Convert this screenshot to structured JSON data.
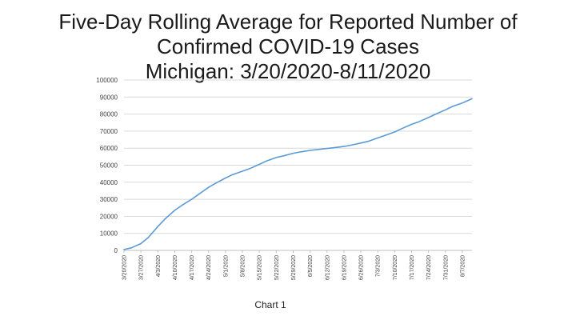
{
  "title_lines": [
    "Five-Day Rolling Average for Reported Number of",
    "Confirmed COVID-19 Cases",
    "Michigan: 3/20/2020-8/11/2020"
  ],
  "caption": "Chart 1",
  "chart_data": {
    "type": "line",
    "title": "Five-Day Rolling Average for Reported Number of Confirmed COVID-19 Cases Michigan: 3/20/2020-8/11/2020",
    "xlabel": "",
    "ylabel": "",
    "ylim": [
      0,
      100000
    ],
    "yticks": [
      0,
      10000,
      20000,
      30000,
      40000,
      50000,
      60000,
      70000,
      80000,
      90000,
      100000
    ],
    "xrange": [
      "2020-03-20",
      "2020-08-11"
    ],
    "xticks": [
      "3/20/2020",
      "3/27/2020",
      "4/3/2020",
      "4/10/2020",
      "4/17/2020",
      "4/24/2020",
      "5/1/2020",
      "5/8/2020",
      "5/15/2020",
      "5/22/2020",
      "5/29/2020",
      "6/5/2020",
      "6/12/2020",
      "6/19/2020",
      "6/26/2020",
      "7/3/2020",
      "7/10/2020",
      "7/17/2020",
      "7/24/2020",
      "7/31/2020",
      "8/7/2020"
    ],
    "grid": {
      "horizontal": true,
      "vertical": false
    },
    "legend": "none",
    "line_color": "#5b9bd5",
    "series": [
      {
        "x": [
          "3/20/2020",
          "3/23/2020",
          "3/27/2020",
          "3/30/2020",
          "4/3/2020",
          "4/6/2020",
          "4/10/2020",
          "4/13/2020",
          "4/17/2020",
          "4/20/2020",
          "4/24/2020",
          "4/27/2020",
          "5/1/2020",
          "5/4/2020",
          "5/8/2020",
          "5/11/2020",
          "5/15/2020",
          "5/18/2020",
          "5/22/2020",
          "5/25/2020",
          "5/29/2020",
          "6/1/2020",
          "6/5/2020",
          "6/8/2020",
          "6/12/2020",
          "6/15/2020",
          "6/19/2020",
          "6/22/2020",
          "6/26/2020",
          "6/29/2020",
          "7/3/2020",
          "7/6/2020",
          "7/10/2020",
          "7/13/2020",
          "7/17/2020",
          "7/20/2020",
          "7/24/2020",
          "7/27/2020",
          "7/31/2020",
          "8/3/2020",
          "8/7/2020",
          "8/11/2020"
        ],
        "values": [
          500,
          1500,
          4000,
          7500,
          14000,
          18500,
          23500,
          26500,
          30000,
          33000,
          37000,
          39500,
          42500,
          44500,
          46500,
          48000,
          50500,
          52500,
          54500,
          55500,
          57000,
          57800,
          58700,
          59200,
          59800,
          60300,
          61000,
          61800,
          63000,
          64000,
          66000,
          67500,
          69500,
          71500,
          74000,
          75500,
          78000,
          80000,
          82500,
          84500,
          86500,
          89000
        ]
      }
    ]
  }
}
